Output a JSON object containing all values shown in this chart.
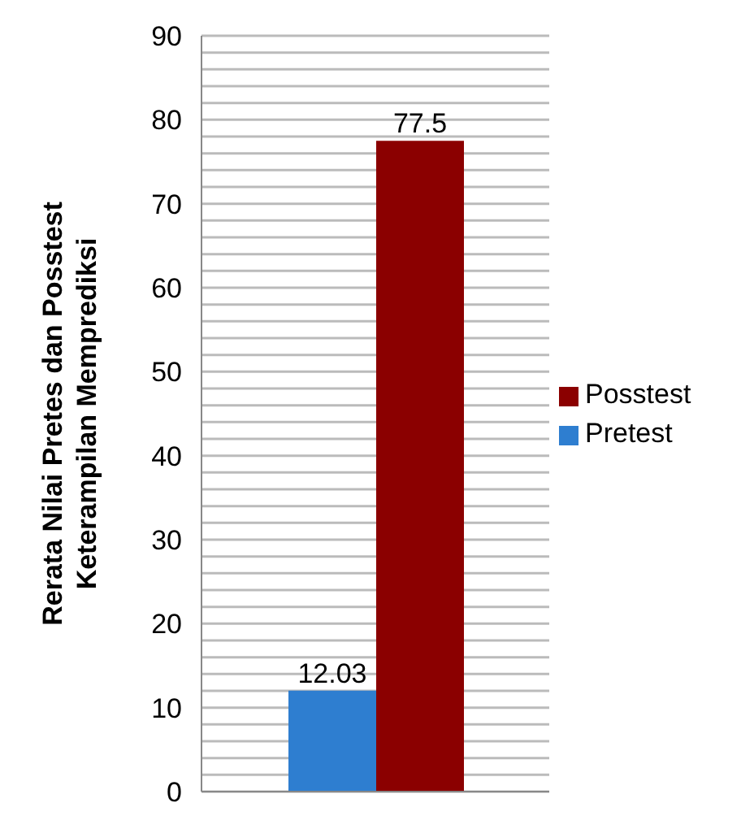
{
  "chart_data": {
    "type": "bar",
    "ylabel": "Rerata Nilai Pretes dan Posstest\nKeterampilan Memprediksi",
    "categories": [
      null
    ],
    "series": [
      {
        "name": "Pretest",
        "color": "#2e7ed0",
        "values": [
          12.03
        ]
      },
      {
        "name": "Posstest",
        "color": "#8b0000",
        "values": [
          77.5
        ]
      }
    ],
    "ylim": [
      0,
      90
    ],
    "yticks": [
      0,
      {
        "value": 2,
        "label": null
      },
      {
        "value": 4,
        "label": null
      },
      {
        "value": 6,
        "label": null
      },
      {
        "value": 8,
        "label": null
      },
      10,
      {
        "value": 12,
        "label": null
      },
      {
        "value": 14,
        "label": null
      },
      {
        "value": 16,
        "label": null
      },
      {
        "value": 18,
        "label": null
      },
      20,
      {
        "value": 22,
        "label": null
      },
      {
        "value": 24,
        "label": null
      },
      {
        "value": 26,
        "label": null
      },
      {
        "value": 28,
        "label": null
      },
      30,
      {
        "value": 32,
        "label": null
      },
      {
        "value": 34,
        "label": null
      },
      {
        "value": 36,
        "label": null
      },
      {
        "value": 38,
        "label": null
      },
      40,
      {
        "value": 42,
        "label": null
      },
      {
        "value": 44,
        "label": null
      },
      {
        "value": 46,
        "label": null
      },
      {
        "value": 48,
        "label": null
      },
      50,
      {
        "value": 52,
        "label": null
      },
      {
        "value": 54,
        "label": null
      },
      {
        "value": 56,
        "label": null
      },
      {
        "value": 58,
        "label": null
      },
      60,
      {
        "value": 62,
        "label": null
      },
      {
        "value": 64,
        "label": null
      },
      {
        "value": 66,
        "label": null
      },
      {
        "value": 68,
        "label": null
      },
      70,
      {
        "value": 72,
        "label": null
      },
      {
        "value": 74,
        "label": null
      },
      {
        "value": 76,
        "label": null
      },
      {
        "value": 78,
        "label": null
      },
      80,
      {
        "value": 82,
        "label": null
      },
      {
        "value": 84,
        "label": null
      },
      {
        "value": 86,
        "label": null
      },
      {
        "value": 88,
        "label": null
      },
      90
    ],
    "grid": "y",
    "legend": "right",
    "data_labels": true
  }
}
